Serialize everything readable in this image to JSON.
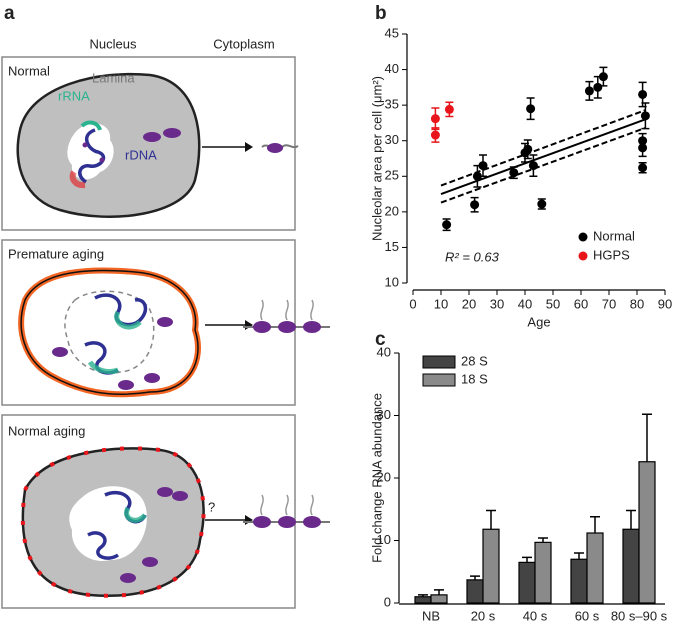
{
  "panel_a": {
    "label": "a",
    "columns": [
      "Nucleus",
      "Cytoplasm"
    ],
    "rows": [
      "Normal",
      "Premature aging",
      "Normal aging"
    ],
    "labels": {
      "lamina": "Lamina",
      "rrna": "rRNA",
      "rdna": "rDNA",
      "question": "?"
    }
  },
  "chart_data": [
    {
      "type": "scatter",
      "panel_label": "b",
      "x_label": "Age",
      "y_label": "Nucleolar area per cell (μm²)",
      "annotation": "R² = 0.63",
      "xlim": [
        0,
        90
      ],
      "xticks": [
        0,
        10,
        20,
        30,
        40,
        50,
        60,
        70,
        80,
        90
      ],
      "ylim": [
        10,
        45
      ],
      "yticks": [
        10,
        15,
        20,
        25,
        30,
        35,
        40,
        45
      ],
      "legend": "lower right",
      "series": [
        {
          "name": "Normal",
          "color": "#000000",
          "x": [
            12,
            22,
            23,
            25,
            36,
            40,
            41,
            42,
            43,
            46,
            63,
            66,
            68,
            82,
            83,
            82,
            82,
            82
          ],
          "values": [
            18.2,
            21,
            25,
            26.5,
            25.5,
            28.3,
            28.8,
            34.5,
            26.5,
            21.1,
            37,
            37.5,
            39,
            36.5,
            33.5,
            30,
            29,
            26.2
          ],
          "errors": [
            0.8,
            1,
            1.5,
            1.5,
            0.8,
            1.3,
            1.3,
            1.5,
            1.5,
            0.7,
            1.3,
            1.5,
            1.3,
            1.7,
            1.8,
            1,
            1.2,
            0.7
          ]
        },
        {
          "name": "HGPS",
          "color": "#e8151b",
          "x": [
            8,
            8,
            13
          ],
          "values": [
            30.8,
            33.1,
            34.4
          ],
          "errors": [
            1,
            1.5,
            1
          ]
        }
      ],
      "fit": {
        "x": [
          10,
          83
        ],
        "y": [
          22.5,
          33
        ]
      },
      "ci_upper": {
        "x": [
          10,
          83
        ],
        "y": [
          23.7,
          34.3
        ]
      },
      "ci_lower": {
        "x": [
          10,
          83
        ],
        "y": [
          21.3,
          31.8
        ]
      }
    },
    {
      "type": "bar",
      "panel_label": "c",
      "y_label": "Fold change RNA abundance",
      "categories": [
        "NB",
        "20 s",
        "40 s",
        "60 s",
        "80 s–90 s"
      ],
      "ylim": [
        0,
        40
      ],
      "yticks": [
        0,
        10,
        20,
        30,
        40
      ],
      "legend": "upper left",
      "series": [
        {
          "name": "28 S",
          "color": "#444444",
          "values": [
            1,
            3.7,
            6.5,
            7,
            11.8
          ],
          "errors": [
            0.3,
            0.6,
            0.8,
            1,
            3
          ]
        },
        {
          "name": "18 S",
          "color": "#8a8a8a",
          "values": [
            1.3,
            11.8,
            9.7,
            11.2,
            22.6
          ],
          "errors": [
            0.8,
            3,
            0.7,
            2.6,
            7.6
          ]
        }
      ]
    }
  ]
}
